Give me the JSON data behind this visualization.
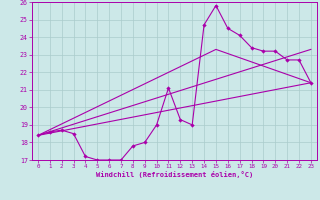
{
  "xlabel": "Windchill (Refroidissement éolien,°C)",
  "xlim": [
    -0.5,
    23.5
  ],
  "ylim": [
    17,
    26
  ],
  "yticks": [
    17,
    18,
    19,
    20,
    21,
    22,
    23,
    24,
    25,
    26
  ],
  "xticks": [
    0,
    1,
    2,
    3,
    4,
    5,
    6,
    7,
    8,
    9,
    10,
    11,
    12,
    13,
    14,
    15,
    16,
    17,
    18,
    19,
    20,
    21,
    22,
    23
  ],
  "bg_color": "#cce8e8",
  "line_color": "#aa00aa",
  "grid_color": "#aacccc",
  "line1_x": [
    0,
    1,
    2,
    3,
    4,
    5,
    6,
    7,
    8,
    9,
    10,
    11,
    12,
    13,
    14,
    15,
    16,
    17,
    18,
    19,
    20,
    21,
    22,
    23
  ],
  "line1_y": [
    18.4,
    18.6,
    18.7,
    18.5,
    17.2,
    17.0,
    17.0,
    17.0,
    17.8,
    18.0,
    19.0,
    21.1,
    19.3,
    19.0,
    24.7,
    25.8,
    24.5,
    24.1,
    23.4,
    23.2,
    23.2,
    22.7,
    22.7,
    21.4
  ],
  "line2_x": [
    0,
    15,
    23
  ],
  "line2_y": [
    18.4,
    23.3,
    21.4
  ],
  "line3_x": [
    0,
    23
  ],
  "line3_y": [
    18.4,
    21.4
  ],
  "line4_x": [
    0,
    23
  ],
  "line4_y": [
    18.4,
    23.3
  ]
}
